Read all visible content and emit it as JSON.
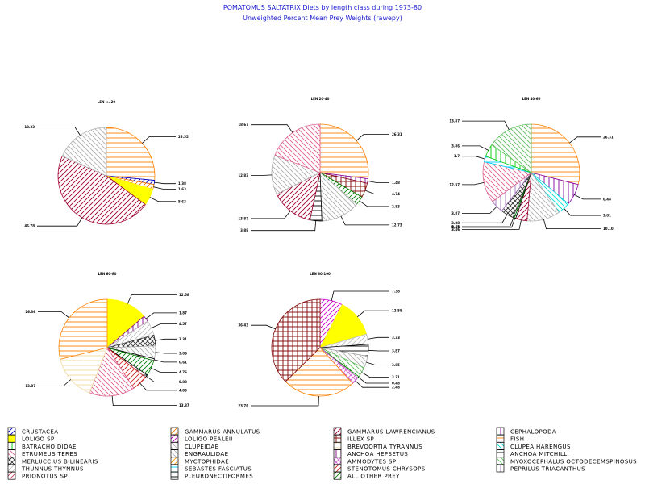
{
  "header": {
    "title": "POMATOMUS SALTATRIX Diets by length class during 1973-80",
    "subtitle": "Unweighted Percent Mean Prey Weights (rawepy)"
  },
  "categories": [
    {
      "id": "crustacea",
      "name": "CRUSTACEA",
      "color": "#0000cc",
      "pattern": "fwd"
    },
    {
      "id": "gammarus_annulatus",
      "name": "GAMMARUS ANNULATUS",
      "color": "#ff7f00",
      "pattern": "fwd"
    },
    {
      "id": "gammarus_lawrencianus",
      "name": "GAMMARUS LAWRENCIANUS",
      "color": "#a00030",
      "pattern": "fwd"
    },
    {
      "id": "cephalopoda",
      "name": "CEPHALOPODA",
      "color": "#8000a0",
      "pattern": "vert"
    },
    {
      "id": "loligo_sp",
      "name": "LOLIGO SP",
      "color": "#ffff00",
      "pattern": "solid"
    },
    {
      "id": "loligo_pealeii",
      "name": "LOLIGO PEALEII",
      "color": "#d000d0",
      "pattern": "fwd"
    },
    {
      "id": "illex_sp",
      "name": "ILLEX SP",
      "color": "#800000",
      "pattern": "cross"
    },
    {
      "id": "fish",
      "name": "FISH",
      "color": "#ff8000",
      "pattern": "horiz"
    },
    {
      "id": "batrachoididae",
      "name": "BATRACHOIDIDAE",
      "color": "#00cc00",
      "pattern": "vert"
    },
    {
      "id": "clupeidae",
      "name": "CLUPEIDAE",
      "color": "#b0b0b0",
      "pattern": "back"
    },
    {
      "id": "brevoortia_tyrannus",
      "name": "BREVOORTIA TYRANNUS",
      "color": "#f0d8a0",
      "pattern": "horiz"
    },
    {
      "id": "clupea_harengus",
      "name": "CLUPEA HARENGUS",
      "color": "#00e0e0",
      "pattern": "back"
    },
    {
      "id": "etrumeus_teres",
      "name": "ETRUMEUS TERES",
      "color": "#e06090",
      "pattern": "back"
    },
    {
      "id": "engraulidae",
      "name": "ENGRAULIDAE",
      "color": "#b0b0b0",
      "pattern": "back"
    },
    {
      "id": "anchoa_hepsetus",
      "name": "ANCHOA HEPSETUS",
      "color": "#800080",
      "pattern": "vert"
    },
    {
      "id": "anchoa_mitchilli",
      "name": "ANCHOA MITCHILLI",
      "color": "#000000",
      "pattern": "horiz"
    },
    {
      "id": "merluccius_bilinearis",
      "name": "MERLUCCIUS BILINEARIS",
      "color": "#303030",
      "pattern": "xcross"
    },
    {
      "id": "myctophidae",
      "name": "MYCTOPHIDAE",
      "color": "#ff9900",
      "pattern": "fwd"
    },
    {
      "id": "ammodytes_sp",
      "name": "AMMODYTES SP",
      "color": "#d060d0",
      "pattern": "xcross"
    },
    {
      "id": "myoxocephalus",
      "name": "MYOXOCEPHALUS OCTODECEMSPINOSUS",
      "color": "#60c060",
      "pattern": "back"
    },
    {
      "id": "thunnus_thynnus",
      "name": "THUNNUS THYNNUS",
      "color": "#c0c0c0",
      "pattern": "fwd"
    },
    {
      "id": "sebastes_fasciatus",
      "name": "SEBASTES FASCIATUS",
      "color": "#00d0ff",
      "pattern": "horiz"
    },
    {
      "id": "stenotomus_chrysops",
      "name": "STENOTOMUS CHRYSOPS",
      "color": "#d02020",
      "pattern": "fwd"
    },
    {
      "id": "peprilus_triacanthus",
      "name": "PEPRILUS TRIACANTHUS",
      "color": "#a070c0",
      "pattern": "vert"
    },
    {
      "id": "prionotus_sp",
      "name": "PRIONOTUS SP",
      "color": "#d04060",
      "pattern": "fwd"
    },
    {
      "id": "pleuronectiformes",
      "name": "PLEURONECTIFORMES",
      "color": "#000000",
      "pattern": "horiz"
    },
    {
      "id": "all_other_prey",
      "name": "ALL OTHER PREY",
      "color": "#008000",
      "pattern": "fwd"
    }
  ],
  "chart_data": [
    {
      "type": "pie",
      "title": "LEN <=20",
      "slices": [
        {
          "category": "fish",
          "value": 26.55,
          "label": "26.55"
        },
        {
          "category": "crustacea",
          "value": 1.38,
          "label": "1.38"
        },
        {
          "category": "gammarus_annulatus",
          "value": 1.63,
          "label": "1.63"
        },
        {
          "category": "loligo_sp",
          "value": 5.63,
          "label": "5.63"
        },
        {
          "category": "gammarus_lawrencianus",
          "value": 46.78,
          "label": "46.78"
        },
        {
          "category": "clupeidae",
          "value": 18.33,
          "label": "18.33"
        }
      ]
    },
    {
      "type": "pie",
      "title": "LEN 20-40",
      "slices": [
        {
          "category": "fish",
          "value": 26.31,
          "label": "26.31"
        },
        {
          "category": "cephalopoda",
          "value": 1.48,
          "label": "1.48"
        },
        {
          "category": "illex_sp",
          "value": 4.74,
          "label": "4.74"
        },
        {
          "category": "all_other_prey",
          "value": 2.83,
          "label": "2.83"
        },
        {
          "category": "clupeidae",
          "value": 12.73,
          "label": "12.73"
        },
        {
          "category": "anchoa_mitchilli",
          "value": 3.88,
          "label": "3.88"
        },
        {
          "category": "gammarus_lawrencianus",
          "value": 13.87,
          "label": "13.87"
        },
        {
          "category": "engraulidae",
          "value": 12.83,
          "label": "12.83"
        },
        {
          "category": "etrumeus_teres",
          "value": 18.67,
          "label": "18.67"
        }
      ]
    },
    {
      "type": "pie",
      "title": "LEN 40-60",
      "slices": [
        {
          "category": "fish",
          "value": 26.31,
          "label": "26.31"
        },
        {
          "category": "cephalopoda",
          "value": 6.48,
          "label": "6.48"
        },
        {
          "category": "clupea_harengus",
          "value": 3.81,
          "label": "3.81"
        },
        {
          "category": "clupeidae",
          "value": 10.1,
          "label": "10.10"
        },
        {
          "category": "gammarus_lawrencianus",
          "value": 3.46,
          "label": "3.46"
        },
        {
          "category": "anchoa_mitchilli",
          "value": 0.45,
          "label": "0.45"
        },
        {
          "category": "all_other_prey",
          "value": 0.45,
          "label": "0.45"
        },
        {
          "category": "merluccius_bilinearis",
          "value": 3.88,
          "label": "3.88"
        },
        {
          "category": "peprilus_triacanthus",
          "value": 3.87,
          "label": "3.87"
        },
        {
          "category": "etrumeus_teres",
          "value": 12.57,
          "label": "12.57"
        },
        {
          "category": "sebastes_fasciatus",
          "value": 1.7,
          "label": "1.7"
        },
        {
          "category": "batrachoididae",
          "value": 3.86,
          "label": "3.86"
        },
        {
          "category": "myoxocephalus",
          "value": 13.87,
          "label": "13.87"
        }
      ]
    },
    {
      "type": "pie",
      "title": "LEN 60-80",
      "slices": [
        {
          "category": "loligo_sp",
          "value": 12.58,
          "label": "12.58"
        },
        {
          "category": "anchoa_hepsetus",
          "value": 1.87,
          "label": "1.87"
        },
        {
          "category": "thunnus_thynnus",
          "value": 4.57,
          "label": "4.57"
        },
        {
          "category": "merluccius_bilinearis",
          "value": 3.31,
          "label": "3.31"
        },
        {
          "category": "clupeidae",
          "value": 3.86,
          "label": "3.86"
        },
        {
          "category": "anchoa_mitchilli",
          "value": 0.61,
          "label": "0.61"
        },
        {
          "category": "all_other_prey",
          "value": 4.76,
          "label": "4.76"
        },
        {
          "category": "pleuronectiformes",
          "value": 0.88,
          "label": "0.88"
        },
        {
          "category": "stenotomus_chrysops",
          "value": 4.83,
          "label": "4.83"
        },
        {
          "category": "etrumeus_teres",
          "value": 13.87,
          "label": "13.87"
        },
        {
          "category": "brevoortia_tyrannus",
          "value": 13.87,
          "label": "13.87"
        },
        {
          "category": "fish",
          "value": 26.36,
          "label": "26.36"
        }
      ]
    },
    {
      "type": "pie",
      "title": "LEN 80-100",
      "slices": [
        {
          "category": "loligo_pealeii",
          "value": 7.38,
          "label": "7.38"
        },
        {
          "category": "loligo_sp",
          "value": 12.58,
          "label": "12.58"
        },
        {
          "category": "thunnus_thynnus",
          "value": 3.33,
          "label": "3.33"
        },
        {
          "category": "anchoa_mitchilli",
          "value": 3.87,
          "label": "3.87"
        },
        {
          "category": "clupeidae",
          "value": 3.85,
          "label": "3.85"
        },
        {
          "category": "myoxocephalus",
          "value": 3.31,
          "label": "3.31"
        },
        {
          "category": "all_other_prey",
          "value": 0.48,
          "label": "0.48"
        },
        {
          "category": "ammodytes_sp",
          "value": 2.48,
          "label": "2.48"
        },
        {
          "category": "fish",
          "value": 23.76,
          "label": "23.76"
        },
        {
          "category": "illex_sp",
          "value": 36.43,
          "label": "36.43"
        }
      ]
    }
  ]
}
